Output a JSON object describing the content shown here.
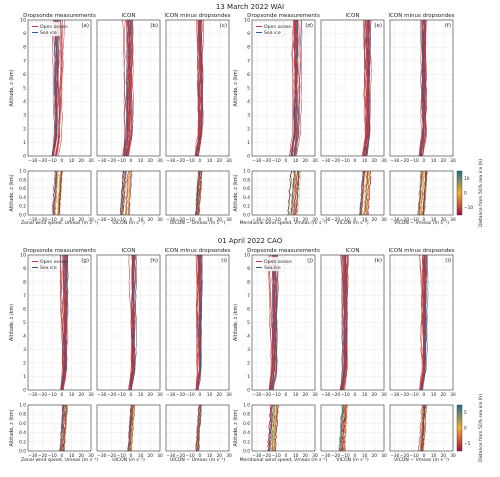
{
  "chart_data": {
    "type": "line",
    "title": "",
    "panel_titles": [
      "Dropsonde measurements",
      "ICON",
      "ICON minus dropsondes",
      "Dropsonde measurements",
      "ICON",
      "ICON minus dropsondes"
    ],
    "panel_letters_top": [
      "(a)",
      "(b)",
      "(c)",
      "(d)",
      "(e)",
      "(f)"
    ],
    "panel_letters_bottom": [
      "(g)",
      "(h)",
      "(i)",
      "(j)",
      "(k)",
      "(l)"
    ],
    "x_tick_labels": [
      "−30",
      "−20",
      "−10",
      "0",
      "10",
      "20",
      "30"
    ],
    "upper_y_ticks": [
      "0",
      "1",
      "2",
      "3",
      "4",
      "5",
      "6",
      "7",
      "8",
      "9",
      "10"
    ],
    "lower_y_ticks": [
      "0.0",
      "0.2",
      "0.4",
      "0.6",
      "0.8",
      "1.0"
    ],
    "xlim": [
      -35,
      30
    ],
    "ylim_upper": [
      0,
      10
    ],
    "ylim_lower": [
      0,
      1
    ],
    "legend": [
      "Open ocean",
      "Sea ice"
    ],
    "colors": {
      "open_ocean": "#c0363c",
      "sea_ice": "#2c5f8f",
      "cmap_low": "#a0103c",
      "cmap_mid": "#f0b030",
      "cmap_high": "#1f6f8f"
    },
    "events": [
      {
        "title": "13 March 2022 WAI",
        "ylabel_upper": "Altitude, z (km)",
        "ylabel_lower": "Altitude, z (km)",
        "xlabels": [
          "Zonal wind speed, Umeas (m s⁻¹)",
          "UICON (m s⁻¹)",
          "UICON − Umeas (m s⁻¹)",
          "Meridional wind speed, Vmeas (m s⁻¹)",
          "VICON (m s⁻¹)",
          "VICON − Vmeas (m s⁻¹)"
        ],
        "colorbar_label": "Distance from 50% sea ice (h)",
        "colorbar_ticks": [
          "10",
          "0",
          "−10"
        ],
        "colorbar_range": [
          -15,
          15
        ],
        "panel_centers": [
          -4,
          -3,
          0,
          10,
          13,
          0
        ],
        "panel_spreads": [
          6,
          6,
          3,
          7,
          6,
          4
        ]
      },
      {
        "title": "01 April 2022 CAO",
        "ylabel_upper": "Altitude, z (km)",
        "ylabel_lower": "Altitude, z (km)",
        "xlabels": [
          "Zonal wind speed, Umeas (m s⁻¹)",
          "UICON (m s⁻¹)",
          "UICON − Umeas (m s⁻¹)",
          "Meridional wind speed, Vmeas (m s⁻¹)",
          "VICON (m s⁻¹)",
          "VICON − Vmeas (m s⁻¹)"
        ],
        "colorbar_label": "Distance from 50% sea ice (h)",
        "colorbar_ticks": [
          "5",
          "0",
          "−5"
        ],
        "colorbar_range": [
          -7,
          7
        ],
        "panel_centers": [
          3,
          2,
          0,
          -12,
          -10,
          0
        ],
        "panel_spreads": [
          3,
          3,
          2,
          5,
          4,
          3
        ]
      }
    ]
  }
}
